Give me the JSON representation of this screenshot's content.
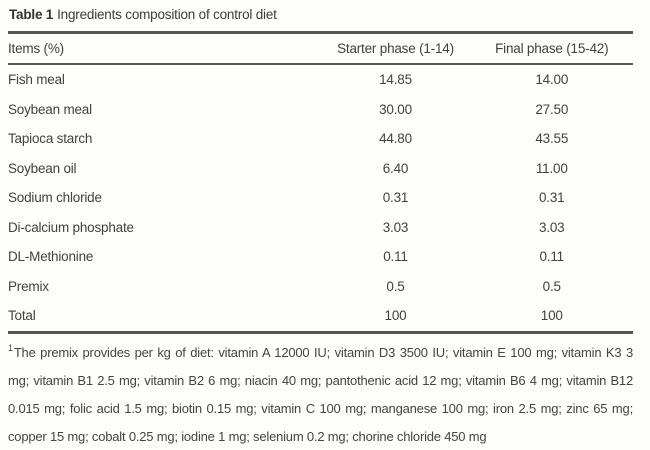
{
  "title": {
    "label": "Table 1",
    "text": "Ingredients composition of control diet"
  },
  "table": {
    "columns": [
      "Items (%)",
      "Starter phase (1-14)",
      "Final phase (15-42)"
    ],
    "rows": [
      {
        "item": "Fish meal",
        "starter": "14.85",
        "final": "14.00"
      },
      {
        "item": "Soybean meal",
        "starter": "30.00",
        "final": "27.50"
      },
      {
        "item": "Tapioca starch",
        "starter": "44.80",
        "final": "43.55"
      },
      {
        "item": "Soybean oil",
        "starter": "6.40",
        "final": "11.00"
      },
      {
        "item": "Sodium chloride",
        "starter": "0.31",
        "final": "0.31"
      },
      {
        "item": "Di-calcium phosphate",
        "starter": "3.03",
        "final": "3.03"
      },
      {
        "item": "DL-Methionine",
        "starter": "0.11",
        "final": "0.11"
      },
      {
        "item": "Premix",
        "starter": "0.5",
        "final": "0.5"
      },
      {
        "item": "Total",
        "starter": "100",
        "final": "100"
      }
    ]
  },
  "footnote": {
    "sup": "1",
    "text": "The premix provides per kg of diet: vitamin A 12000 IU; vitamin D3 3500 IU; vitamin E 100 mg; vitamin K3 3 mg; vitamin B1 2.5 mg; vitamin B2 6 mg; niacin 40 mg; pantothenic acid 12 mg; vitamin B6 4 mg; vitamin B12 0.015 mg; folic acid 1.5 mg; biotin 0.15 mg; vitamin C 100 mg; manganese 100 mg; iron 2.5 mg; zinc 65 mg; copper 15 mg; cobalt 0.25 mg; iodine 1 mg; selenium 0.2 mg; chorine chloride 450 mg"
  },
  "colors": {
    "text": "#424242",
    "rule": "#555555",
    "background": "#fdfdfc"
  }
}
